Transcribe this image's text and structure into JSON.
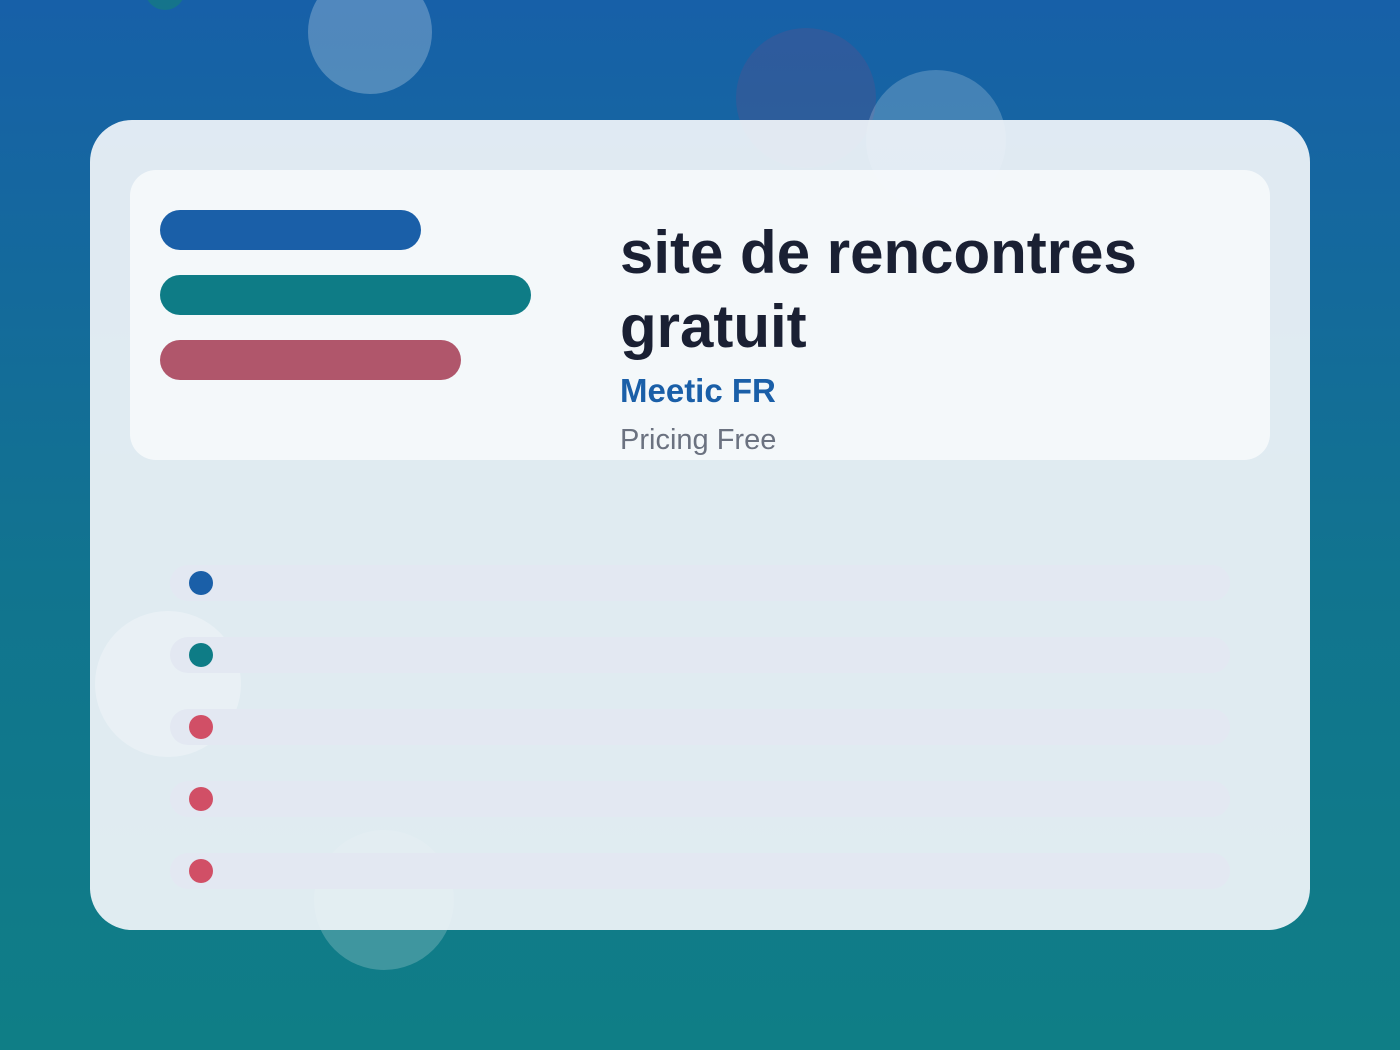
{
  "header": {
    "title": "site de rencontres gratuit",
    "subtitle": "Meetic FR",
    "meta": "Pricing Free"
  }
}
